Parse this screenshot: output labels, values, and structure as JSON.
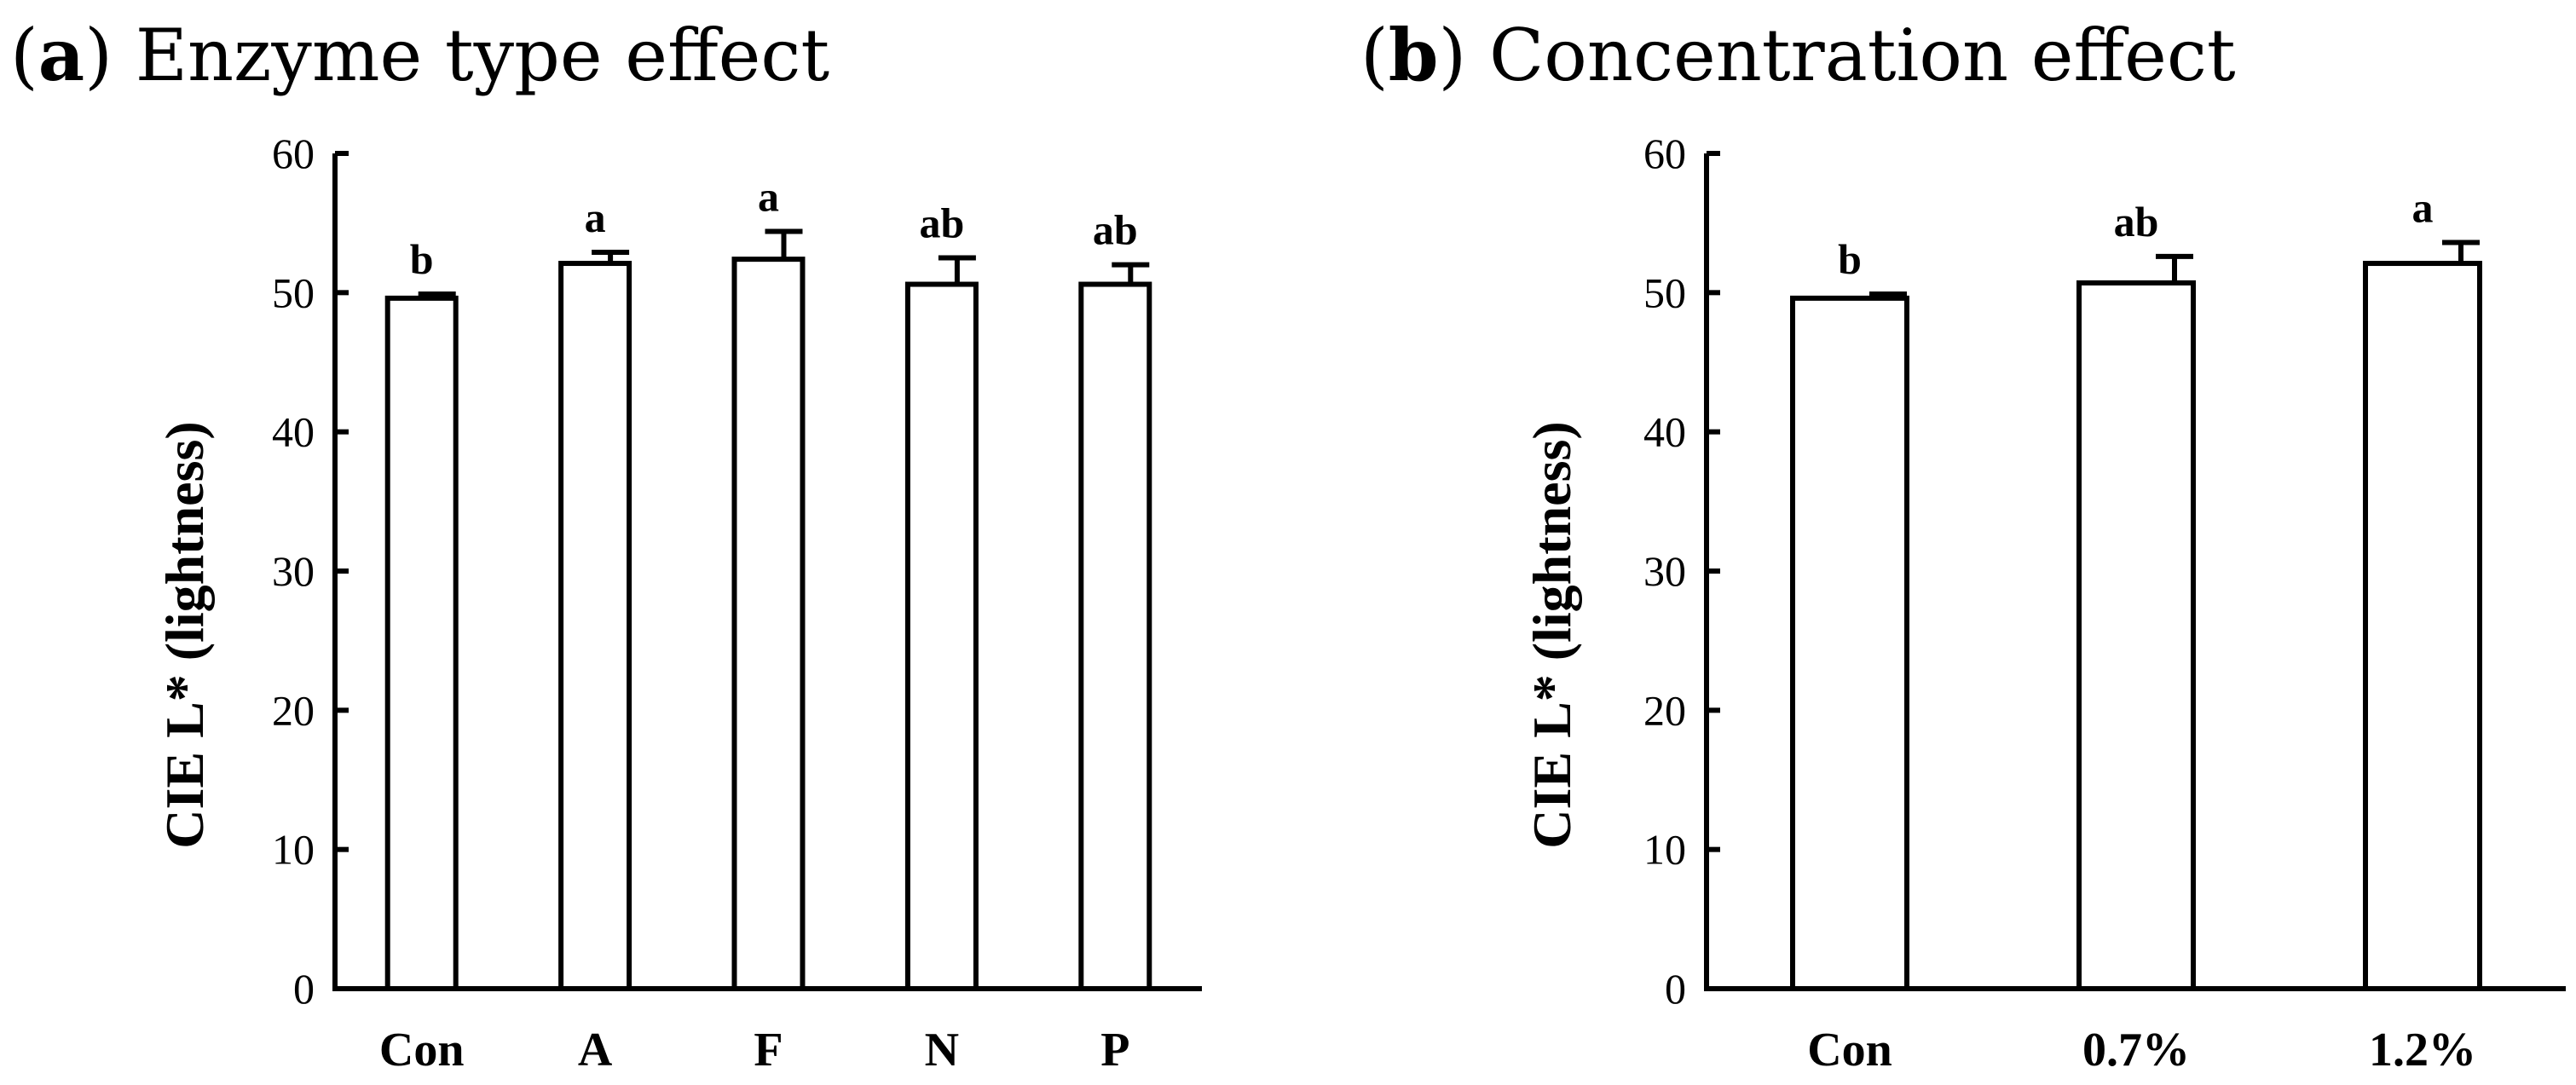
{
  "chart_data": [
    {
      "type": "bar",
      "panel_letter": "a",
      "title": "Enzyme type effect",
      "ylabel": "CIE L* (lightness)",
      "xlabel": "",
      "ylim": [
        0,
        60
      ],
      "yticks": [
        0,
        10,
        20,
        30,
        40,
        50,
        60
      ],
      "grid": false,
      "categories": [
        "Con",
        "A",
        "F",
        "N",
        "P"
      ],
      "values": [
        49.6,
        52.1,
        52.4,
        50.6,
        50.6
      ],
      "errors": [
        0.3,
        0.8,
        2.0,
        1.9,
        1.4
      ],
      "significance": [
        "b",
        "a",
        "a",
        "ab",
        "ab"
      ]
    },
    {
      "type": "bar",
      "panel_letter": "b",
      "title": "Concentration effect",
      "ylabel": "CIE L* (lightness)",
      "xlabel": "",
      "ylim": [
        0,
        60
      ],
      "yticks": [
        0,
        10,
        20,
        30,
        40,
        50,
        60
      ],
      "grid": false,
      "categories": [
        "Con",
        "0.7%",
        "1.2%"
      ],
      "values": [
        49.6,
        50.7,
        52.1
      ],
      "errors": [
        0.3,
        1.9,
        1.5
      ],
      "significance": [
        "b",
        "ab",
        "a"
      ]
    }
  ]
}
